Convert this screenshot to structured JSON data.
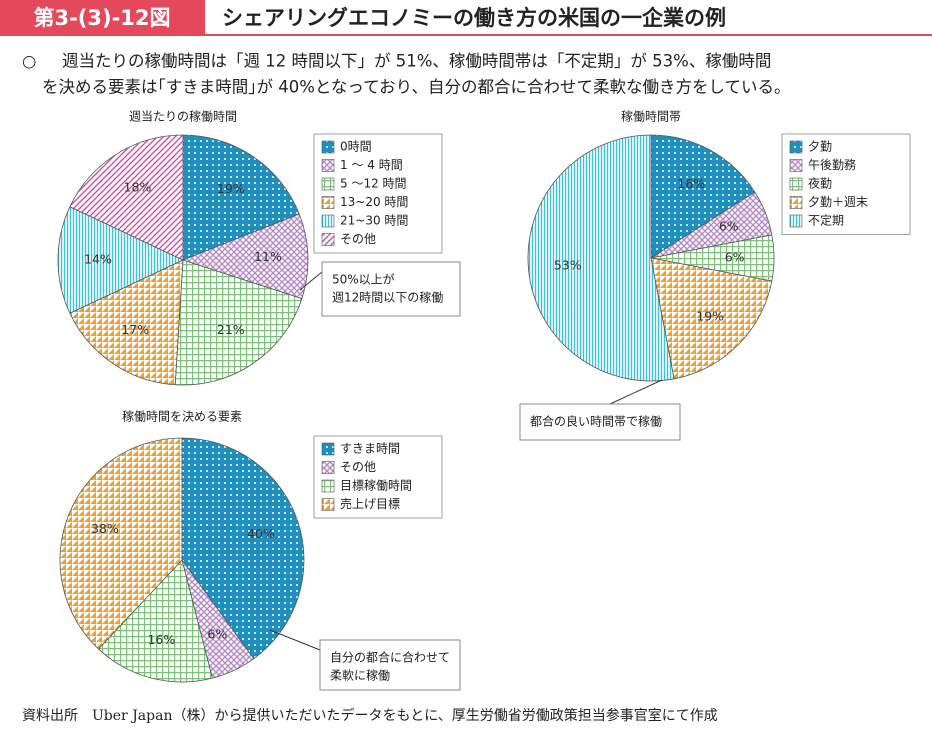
{
  "header": {
    "figure_number": "第3-(3)-12図",
    "title": "シェアリングエコノミーの働き方の米国の一企業の例"
  },
  "summary": {
    "bullet": "○",
    "lines": [
      "週当たりの稼働時間は「週 12 時間以下」が 51%、稼働時間帯は「不定期」が 53%、稼働時間",
      "を決める要素は｢すきま時間｣が 40%となっており、自分の都合に合わせて柔軟な働き方をしている。"
    ]
  },
  "chart_data": [
    {
      "type": "pie",
      "title": "週当たりの稼働時間",
      "categories": [
        "0時間",
        "1 ～ 4 時間",
        "5 ～12 時間",
        "13~20 時間",
        "21~30 時間",
        "その他"
      ],
      "values": [
        19,
        11,
        21,
        17,
        14,
        18
      ],
      "value_labels": [
        "19%",
        "11%",
        "21%",
        "17%",
        "14%",
        "18%"
      ],
      "colors": [
        "#1f8fc0",
        "#b58ac8",
        "#7cc07a",
        "#f0a030",
        "#40c0d8",
        "#d0509a"
      ],
      "patterns": [
        "dots",
        "cross",
        "grid",
        "tri",
        "vline",
        "diag"
      ],
      "annotation": [
        "50%以上が",
        "週12時間以下の稼働"
      ]
    },
    {
      "type": "pie",
      "title": "稼働時間帯",
      "categories": [
        "夕勤",
        "午後勤務",
        "夜勤",
        "夕勤＋週末",
        "不定期"
      ],
      "values": [
        16,
        6,
        6,
        19,
        53
      ],
      "value_labels": [
        "16%",
        "6%",
        "6%",
        "19%",
        "53%"
      ],
      "colors": [
        "#1f8fc0",
        "#b58ac8",
        "#7cc07a",
        "#f0a030",
        "#40c0d8"
      ],
      "patterns": [
        "dots",
        "cross",
        "grid",
        "tri",
        "vline"
      ],
      "annotation": [
        "都合の良い時間帯で稼働"
      ]
    },
    {
      "type": "pie",
      "title": "稼働時間を決める要素",
      "categories": [
        "すきま時間",
        "その他",
        "目標稼働時間",
        "売上げ目標"
      ],
      "values": [
        40,
        6,
        16,
        38
      ],
      "value_labels": [
        "40%",
        "6%",
        "16%",
        "38%"
      ],
      "colors": [
        "#1f8fc0",
        "#b58ac8",
        "#7cc07a",
        "#f0a030"
      ],
      "patterns": [
        "dots",
        "cross",
        "grid",
        "tri"
      ],
      "annotation": [
        "自分の都合に合わせて",
        "柔軟に稼働"
      ]
    }
  ],
  "source": "資料出所　Uber Japan（株）から提供いただいたデータをもとに、厚生労働省労働政策担当参事官室にて作成"
}
